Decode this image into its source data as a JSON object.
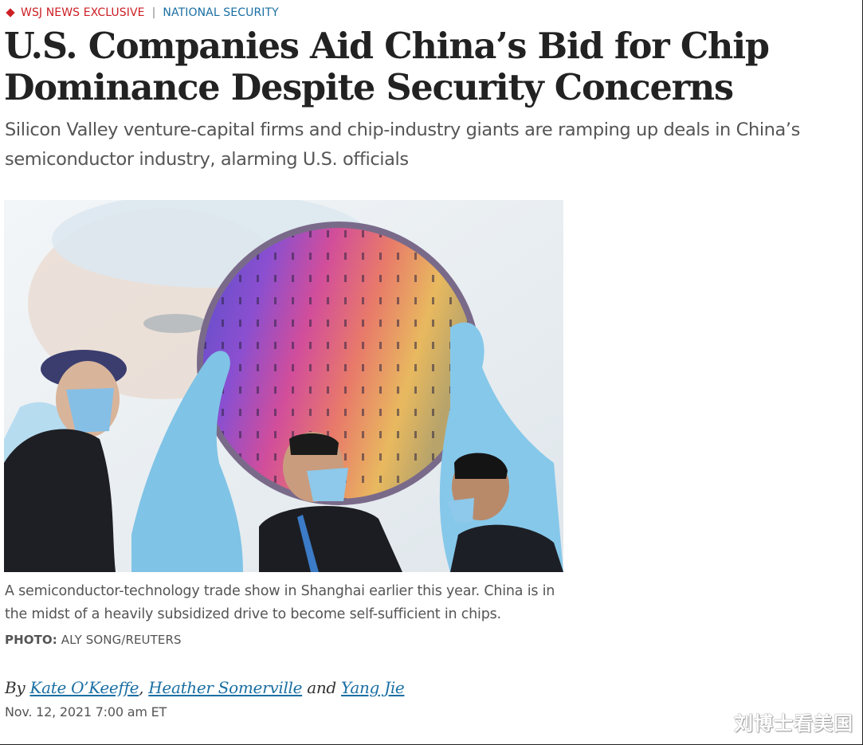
{
  "kicker": {
    "exclusive_label": "WSJ NEWS EXCLUSIVE",
    "divider": "|",
    "section_label": "NATIONAL SECURITY",
    "accent_color": "#cc1f25",
    "link_color": "#1a6fa3"
  },
  "headline": "U.S. Companies Aid China’s Bid for Chip Dominance Despite Security Concerns",
  "dek": "Silicon Valley venture-capital firms and chip-industry giants are ramping up deals in China’s semiconductor industry, alarming U.S. officials",
  "photo": {
    "caption": "A semiconductor-technology trade show in Shanghai earlier this year. China is in the midst of a heavily subsidized drive to become self-sufficient in chips.",
    "credit_label": "PHOTO:",
    "credit_value": " ALY SONG/REUTERS"
  },
  "byline": {
    "prefix": "By ",
    "authors": [
      "Kate O’Keeffe",
      "Heather Somerville",
      "Yang Jie"
    ],
    "sep_comma": ", ",
    "sep_and": " and "
  },
  "timestamp": "Nov. 12, 2021 7:00 am ET",
  "watermark": "刘博士看美国"
}
